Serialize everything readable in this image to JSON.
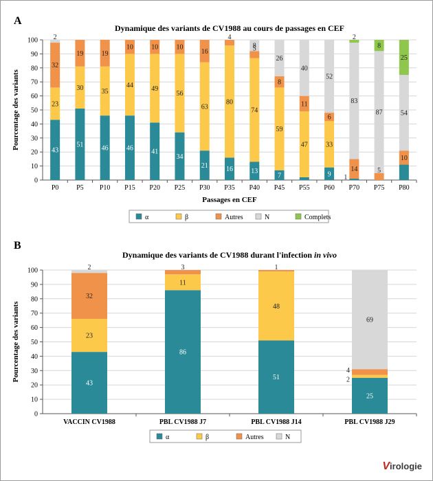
{
  "colors": {
    "alpha": "#2a8a97",
    "beta": "#fcc94a",
    "autres": "#f0924a",
    "n": "#d8d8d8",
    "complets": "#8fc74e"
  },
  "panels": [
    {
      "letter": "A"
    },
    {
      "letter": "B"
    }
  ],
  "logo": {
    "initial": "V",
    "rest": "irologie"
  },
  "chart_data": [
    {
      "type": "bar",
      "stacked": true,
      "title": "Dynamique des variants de CV1988 au cours de passages en CEF",
      "title_italic": "",
      "xlabel": "Passages en CEF",
      "ylabel": "Pourcentage des variants",
      "ylim": [
        0,
        100
      ],
      "yticks": [
        0,
        10,
        20,
        30,
        40,
        50,
        60,
        70,
        80,
        90,
        100
      ],
      "grid": true,
      "legend_position": "bottom",
      "categories": [
        "P0",
        "P5",
        "P10",
        "P15",
        "P20",
        "P25",
        "P30",
        "P35",
        "P40",
        "P45",
        "P55",
        "P60",
        "P70",
        "P75",
        "P80"
      ],
      "series": [
        {
          "name": "α",
          "color_key": "alpha",
          "values": [
            43,
            51,
            46,
            46,
            41,
            34,
            21,
            16,
            13,
            7,
            2,
            9,
            1,
            0,
            11
          ],
          "labels": [
            "43",
            "51",
            "46",
            "46",
            "41",
            "34",
            "21",
            "16",
            "13",
            "7",
            "",
            "9",
            "1",
            "",
            ""
          ]
        },
        {
          "name": "β",
          "color_key": "beta",
          "values": [
            23,
            30,
            35,
            44,
            49,
            56,
            63,
            80,
            74,
            59,
            47,
            33,
            0,
            0,
            0
          ],
          "labels": [
            "23",
            "30",
            "35",
            "44",
            "49",
            "56",
            "63",
            "80",
            "74",
            "59",
            "47",
            "33",
            "",
            "",
            ""
          ]
        },
        {
          "name": "Autres",
          "color_key": "autres",
          "values": [
            32,
            19,
            19,
            10,
            10,
            10,
            16,
            4,
            5,
            8,
            11,
            6,
            14,
            5,
            10
          ],
          "labels": [
            "32",
            "19",
            "19",
            "10",
            "10",
            "10",
            "16",
            "4",
            "5",
            "8",
            "11",
            "6",
            "14",
            "5",
            "10"
          ]
        },
        {
          "name": "N",
          "color_key": "n",
          "values": [
            2,
            0,
            0,
            0,
            0,
            0,
            0,
            0,
            8,
            26,
            40,
            52,
            83,
            87,
            54
          ],
          "labels": [
            "2",
            "",
            "",
            "",
            "",
            "",
            "",
            "",
            "8",
            "26",
            "40",
            "52",
            "83",
            "87",
            "54"
          ]
        },
        {
          "name": "Complets",
          "color_key": "complets",
          "values": [
            0,
            0,
            0,
            0,
            0,
            0,
            0,
            0,
            0,
            0,
            0,
            0,
            2,
            8,
            25
          ],
          "labels": [
            "",
            "",
            "",
            "",
            "",
            "",
            "",
            "",
            "",
            "",
            "",
            "",
            "2",
            "8",
            "25"
          ]
        }
      ]
    },
    {
      "type": "bar",
      "stacked": true,
      "title": "Dynamique des variants de CV1988 durant l'infection ",
      "title_italic": "in vivo",
      "xlabel": "",
      "ylabel": "Pourcentage des variants",
      "ylim": [
        0,
        100
      ],
      "yticks": [
        0,
        10,
        20,
        30,
        40,
        50,
        60,
        70,
        80,
        90,
        100
      ],
      "grid": true,
      "legend_position": "bottom",
      "categories": [
        "VACCIN CV1988",
        "PBL CV1988 J7",
        "PBL CV1988 J14",
        "PBL CV1988 J29"
      ],
      "series": [
        {
          "name": "α",
          "color_key": "alpha",
          "values": [
            43,
            86,
            51,
            25
          ],
          "labels": [
            "43",
            "86",
            "51",
            "25"
          ]
        },
        {
          "name": "β",
          "color_key": "beta",
          "values": [
            23,
            11,
            48,
            2
          ],
          "labels": [
            "23",
            "11",
            "48",
            "2"
          ]
        },
        {
          "name": "Autres",
          "color_key": "autres",
          "values": [
            32,
            3,
            1,
            4
          ],
          "labels": [
            "32",
            "3",
            "1",
            "4"
          ]
        },
        {
          "name": "N",
          "color_key": "n",
          "values": [
            2,
            0,
            0,
            69
          ],
          "labels": [
            "2",
            "",
            "",
            "69"
          ]
        }
      ]
    }
  ]
}
